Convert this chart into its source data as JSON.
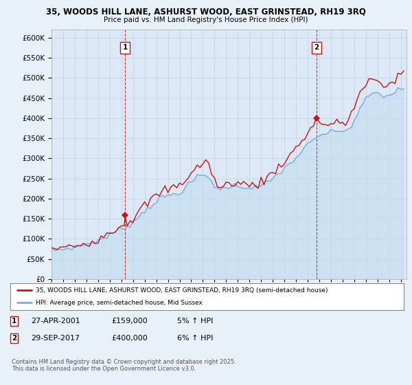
{
  "title_line1": "35, WOODS HILL LANE, ASHURST WOOD, EAST GRINSTEAD, RH19 3RQ",
  "title_line2": "Price paid vs. HM Land Registry's House Price Index (HPI)",
  "background_color": "#e8f0f8",
  "plot_bg_color": "#dce8f5",
  "grid_color": "#c8d8e8",
  "sale1": {
    "date_num": 2001.32,
    "price": 159000,
    "label": "1",
    "date_str": "27-APR-2001",
    "pct": "5%"
  },
  "sale2": {
    "date_num": 2017.75,
    "price": 400000,
    "label": "2",
    "date_str": "29-SEP-2017",
    "pct": "6%"
  },
  "legend_house": "35, WOODS HILL LANE, ASHURST WOOD, EAST GRINSTEAD, RH19 3RQ (semi-detached house)",
  "legend_hpi": "HPI: Average price, semi-detached house, Mid Sussex",
  "footer": "Contains HM Land Registry data © Crown copyright and database right 2025.\nThis data is licensed under the Open Government Licence v3.0.",
  "ylim": [
    0,
    620000
  ],
  "xlim_start": 1995.0,
  "xlim_end": 2025.5,
  "hpi_color": "#7aabda",
  "hpi_fill_color": "#c5ddf0",
  "price_color": "#cc1111",
  "sale_vline_color": "#cc1111",
  "hpi_points": [
    [
      1995.0,
      72000
    ],
    [
      1995.25,
      73000
    ],
    [
      1995.5,
      72500
    ],
    [
      1995.75,
      73500
    ],
    [
      1996.0,
      75000
    ],
    [
      1996.25,
      76000
    ],
    [
      1996.5,
      77000
    ],
    [
      1996.75,
      78500
    ],
    [
      1997.0,
      80000
    ],
    [
      1997.25,
      82000
    ],
    [
      1997.5,
      83500
    ],
    [
      1997.75,
      85000
    ],
    [
      1998.0,
      87000
    ],
    [
      1998.25,
      89000
    ],
    [
      1998.5,
      91000
    ],
    [
      1998.75,
      93000
    ],
    [
      1999.0,
      96000
    ],
    [
      1999.25,
      99000
    ],
    [
      1999.5,
      102000
    ],
    [
      1999.75,
      106000
    ],
    [
      2000.0,
      110000
    ],
    [
      2000.25,
      114000
    ],
    [
      2000.5,
      118000
    ],
    [
      2000.75,
      122000
    ],
    [
      2001.0,
      126000
    ],
    [
      2001.25,
      129000
    ],
    [
      2001.5,
      133000
    ],
    [
      2001.75,
      137000
    ],
    [
      2002.0,
      142000
    ],
    [
      2002.25,
      149000
    ],
    [
      2002.5,
      156000
    ],
    [
      2002.75,
      163000
    ],
    [
      2003.0,
      170000
    ],
    [
      2003.25,
      177000
    ],
    [
      2003.5,
      183000
    ],
    [
      2003.75,
      188000
    ],
    [
      2004.0,
      193000
    ],
    [
      2004.25,
      198000
    ],
    [
      2004.5,
      202000
    ],
    [
      2004.75,
      205000
    ],
    [
      2005.0,
      207000
    ],
    [
      2005.25,
      209000
    ],
    [
      2005.5,
      211000
    ],
    [
      2005.75,
      213000
    ],
    [
      2006.0,
      216000
    ],
    [
      2006.25,
      221000
    ],
    [
      2006.5,
      227000
    ],
    [
      2006.75,
      234000
    ],
    [
      2007.0,
      240000
    ],
    [
      2007.25,
      247000
    ],
    [
      2007.5,
      253000
    ],
    [
      2007.75,
      257000
    ],
    [
      2008.0,
      258000
    ],
    [
      2008.25,
      256000
    ],
    [
      2008.5,
      252000
    ],
    [
      2008.75,
      244000
    ],
    [
      2009.0,
      233000
    ],
    [
      2009.25,
      225000
    ],
    [
      2009.5,
      222000
    ],
    [
      2009.75,
      224000
    ],
    [
      2010.0,
      228000
    ],
    [
      2010.25,
      231000
    ],
    [
      2010.5,
      233000
    ],
    [
      2010.75,
      232000
    ],
    [
      2011.0,
      231000
    ],
    [
      2011.25,
      231000
    ],
    [
      2011.5,
      230000
    ],
    [
      2011.75,
      229000
    ],
    [
      2012.0,
      228000
    ],
    [
      2012.25,
      228000
    ],
    [
      2012.5,
      229000
    ],
    [
      2012.75,
      230000
    ],
    [
      2013.0,
      232000
    ],
    [
      2013.25,
      235000
    ],
    [
      2013.5,
      239000
    ],
    [
      2013.75,
      244000
    ],
    [
      2014.0,
      249000
    ],
    [
      2014.25,
      256000
    ],
    [
      2014.5,
      263000
    ],
    [
      2014.75,
      269000
    ],
    [
      2015.0,
      275000
    ],
    [
      2015.25,
      281000
    ],
    [
      2015.5,
      287000
    ],
    [
      2015.75,
      294000
    ],
    [
      2016.0,
      302000
    ],
    [
      2016.25,
      310000
    ],
    [
      2016.5,
      318000
    ],
    [
      2016.75,
      325000
    ],
    [
      2017.0,
      333000
    ],
    [
      2017.25,
      339000
    ],
    [
      2017.5,
      345000
    ],
    [
      2017.75,
      350000
    ],
    [
      2018.0,
      356000
    ],
    [
      2018.25,
      360000
    ],
    [
      2018.5,
      362000
    ],
    [
      2018.75,
      363000
    ],
    [
      2019.0,
      364000
    ],
    [
      2019.25,
      366000
    ],
    [
      2019.5,
      368000
    ],
    [
      2019.75,
      369000
    ],
    [
      2020.0,
      370000
    ],
    [
      2020.25,
      368000
    ],
    [
      2020.5,
      372000
    ],
    [
      2020.75,
      382000
    ],
    [
      2021.0,
      393000
    ],
    [
      2021.25,
      408000
    ],
    [
      2021.5,
      422000
    ],
    [
      2021.75,
      435000
    ],
    [
      2022.0,
      447000
    ],
    [
      2022.25,
      456000
    ],
    [
      2022.5,
      462000
    ],
    [
      2022.75,
      463000
    ],
    [
      2023.0,
      460000
    ],
    [
      2023.25,
      457000
    ],
    [
      2023.5,
      455000
    ],
    [
      2023.75,
      455000
    ],
    [
      2024.0,
      457000
    ],
    [
      2024.25,
      461000
    ],
    [
      2024.5,
      465000
    ],
    [
      2024.75,
      470000
    ],
    [
      2025.0,
      473000
    ],
    [
      2025.25,
      476000
    ]
  ],
  "price_points": [
    [
      1995.0,
      74000
    ],
    [
      1995.25,
      75500
    ],
    [
      1995.5,
      74000
    ],
    [
      1995.75,
      75000
    ],
    [
      1996.0,
      77000
    ],
    [
      1996.25,
      78500
    ],
    [
      1996.5,
      79500
    ],
    [
      1996.75,
      81000
    ],
    [
      1997.0,
      83000
    ],
    [
      1997.25,
      85000
    ],
    [
      1997.5,
      86500
    ],
    [
      1997.75,
      88000
    ],
    [
      1998.0,
      90500
    ],
    [
      1998.25,
      92500
    ],
    [
      1998.5,
      94500
    ],
    [
      1998.75,
      97000
    ],
    [
      1999.0,
      101000
    ],
    [
      1999.25,
      105000
    ],
    [
      1999.5,
      108000
    ],
    [
      1999.75,
      112000
    ],
    [
      2000.0,
      117000
    ],
    [
      2000.25,
      121000
    ],
    [
      2000.5,
      125000
    ],
    [
      2000.75,
      130000
    ],
    [
      2001.0,
      134000
    ],
    [
      2001.25,
      138000
    ],
    [
      2001.32,
      159000
    ],
    [
      2001.5,
      141000
    ],
    [
      2001.75,
      145000
    ],
    [
      2002.0,
      151000
    ],
    [
      2002.25,
      159000
    ],
    [
      2002.5,
      167000
    ],
    [
      2002.75,
      175000
    ],
    [
      2003.0,
      182000
    ],
    [
      2003.25,
      190000
    ],
    [
      2003.5,
      196000
    ],
    [
      2003.75,
      201000
    ],
    [
      2004.0,
      206000
    ],
    [
      2004.25,
      212000
    ],
    [
      2004.5,
      217000
    ],
    [
      2004.75,
      221000
    ],
    [
      2005.0,
      224000
    ],
    [
      2005.25,
      226000
    ],
    [
      2005.5,
      228000
    ],
    [
      2005.75,
      231000
    ],
    [
      2006.0,
      235000
    ],
    [
      2006.25,
      241000
    ],
    [
      2006.5,
      248000
    ],
    [
      2006.75,
      256000
    ],
    [
      2007.0,
      263000
    ],
    [
      2007.25,
      271000
    ],
    [
      2007.5,
      278000
    ],
    [
      2007.75,
      283000
    ],
    [
      2008.0,
      287000
    ],
    [
      2008.25,
      291000
    ],
    [
      2008.5,
      285000
    ],
    [
      2008.75,
      268000
    ],
    [
      2009.0,
      248000
    ],
    [
      2009.25,
      232000
    ],
    [
      2009.5,
      225000
    ],
    [
      2009.75,
      228000
    ],
    [
      2010.0,
      234000
    ],
    [
      2010.25,
      239000
    ],
    [
      2010.5,
      242000
    ],
    [
      2010.75,
      240000
    ],
    [
      2011.0,
      238000
    ],
    [
      2011.25,
      237000
    ],
    [
      2011.5,
      236000
    ],
    [
      2011.75,
      235000
    ],
    [
      2012.0,
      234000
    ],
    [
      2012.25,
      234000
    ],
    [
      2012.5,
      236000
    ],
    [
      2012.75,
      238000
    ],
    [
      2013.0,
      241000
    ],
    [
      2013.25,
      246000
    ],
    [
      2013.5,
      251000
    ],
    [
      2013.75,
      258000
    ],
    [
      2014.0,
      264000
    ],
    [
      2014.25,
      272000
    ],
    [
      2014.5,
      280000
    ],
    [
      2014.75,
      287000
    ],
    [
      2015.0,
      294000
    ],
    [
      2015.25,
      301000
    ],
    [
      2015.5,
      308000
    ],
    [
      2015.75,
      316000
    ],
    [
      2016.0,
      325000
    ],
    [
      2016.25,
      335000
    ],
    [
      2016.5,
      345000
    ],
    [
      2016.75,
      354000
    ],
    [
      2017.0,
      364000
    ],
    [
      2017.25,
      373000
    ],
    [
      2017.5,
      382000
    ],
    [
      2017.75,
      400000
    ],
    [
      2018.0,
      393000
    ],
    [
      2018.25,
      388000
    ],
    [
      2018.5,
      384000
    ],
    [
      2018.75,
      383000
    ],
    [
      2019.0,
      383000
    ],
    [
      2019.25,
      385000
    ],
    [
      2019.5,
      387000
    ],
    [
      2019.75,
      389000
    ],
    [
      2020.0,
      391000
    ],
    [
      2020.25,
      388000
    ],
    [
      2020.5,
      396000
    ],
    [
      2020.75,
      413000
    ],
    [
      2021.0,
      428000
    ],
    [
      2021.25,
      447000
    ],
    [
      2021.5,
      462000
    ],
    [
      2021.75,
      474000
    ],
    [
      2022.0,
      483000
    ],
    [
      2022.25,
      492000
    ],
    [
      2022.5,
      497000
    ],
    [
      2022.75,
      493000
    ],
    [
      2023.0,
      486000
    ],
    [
      2023.25,
      481000
    ],
    [
      2023.5,
      479000
    ],
    [
      2023.75,
      481000
    ],
    [
      2024.0,
      485000
    ],
    [
      2024.25,
      491000
    ],
    [
      2024.5,
      497000
    ],
    [
      2024.75,
      504000
    ],
    [
      2025.0,
      509000
    ],
    [
      2025.25,
      513000
    ]
  ]
}
